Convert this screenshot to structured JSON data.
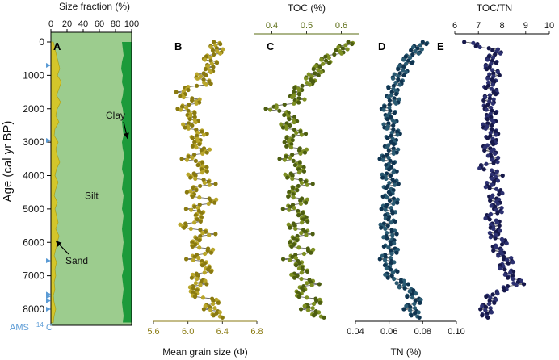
{
  "chart_data": {
    "type": "line",
    "title": "",
    "y_axis": {
      "label": "Age (cal yr BP)",
      "ticks": [
        0,
        1000,
        2000,
        3000,
        4000,
        5000,
        6000,
        7000,
        8000
      ],
      "tick_labels": [
        "0",
        "1000",
        "2000",
        "3000",
        "4000",
        "5000",
        "6000",
        "7000",
        "8000"
      ],
      "range": [
        -400,
        8500
      ]
    },
    "ams_label": {
      "prefix": "AMS",
      "isotope": "14",
      "element": "C"
    },
    "ams_dates": [
      700,
      2950,
      6550,
      7550,
      7620,
      7750,
      8000
    ],
    "panels": [
      {
        "id": "A",
        "panel_label": "A",
        "xlabel": "Size fraction (%)",
        "xlabel_position": "top",
        "xlim": [
          0,
          100
        ],
        "ticks": [
          0,
          20,
          40,
          60,
          80,
          100
        ],
        "tick_labels": [
          "0",
          "20",
          "40",
          "60",
          "80",
          "100"
        ],
        "components": [
          {
            "name": "Sand",
            "color": "#d4c62a"
          },
          {
            "name": "Silt",
            "color": "#9ccc8e"
          },
          {
            "name": "Clay",
            "color": "#1c9a3a"
          }
        ],
        "ages": [
          0,
          200,
          400,
          600,
          800,
          1000,
          1200,
          1400,
          1600,
          1800,
          2000,
          2200,
          2400,
          2600,
          2800,
          3000,
          3200,
          3400,
          3600,
          3800,
          4000,
          4200,
          4400,
          4600,
          4800,
          5000,
          5200,
          5400,
          5600,
          5800,
          6000,
          6200,
          6400,
          6600,
          6800,
          7000,
          7200,
          7400,
          7600,
          7800,
          8000,
          8200,
          8400
        ],
        "sand_upper": [
          3,
          5,
          7,
          9,
          11,
          8,
          13,
          10,
          7,
          12,
          8,
          6,
          10,
          5,
          4,
          9,
          6,
          8,
          11,
          7,
          5,
          9,
          6,
          4,
          8,
          5,
          7,
          9,
          6,
          10,
          8,
          6,
          4,
          7,
          5,
          6,
          4,
          5,
          3,
          4,
          6,
          4,
          3
        ],
        "silt_upper": [
          88,
          89,
          90,
          88,
          87,
          89,
          88,
          90,
          89,
          87,
          89,
          90,
          88,
          89,
          90,
          88,
          89,
          91,
          89,
          88,
          90,
          89,
          88,
          90,
          89,
          88,
          90,
          89,
          88,
          89,
          90,
          89,
          88,
          89,
          90,
          88,
          89,
          90,
          89,
          88,
          89,
          90,
          89
        ],
        "annotations": [
          {
            "text": "Clay",
            "age": 2200,
            "value": 76,
            "arrow_to_age": 2900,
            "arrow_to_value": 95
          },
          {
            "text": "Silt",
            "age": 4600,
            "value": 52
          },
          {
            "text": "Sand",
            "age": 6550,
            "value": 28,
            "arrow_to_age": 5950,
            "arrow_to_value": 4
          }
        ]
      },
      {
        "id": "B",
        "panel_label": "B",
        "xlabel": "Mean grain size (Φ)",
        "xlabel_position": "bottom",
        "xlim": [
          5.6,
          6.8
        ],
        "ticks": [
          5.6,
          6.0,
          6.4,
          6.8
        ],
        "tick_labels": [
          "5.6",
          "6.0",
          "6.4",
          "6.8"
        ],
        "colors": [
          "#8a7a10",
          "#b9a62a"
        ],
        "ages": [
          0,
          250,
          500,
          750,
          1000,
          1250,
          1500,
          1750,
          2000,
          2250,
          2500,
          2750,
          3000,
          3250,
          3500,
          3750,
          4000,
          4250,
          4500,
          4750,
          5000,
          5250,
          5500,
          5750,
          6000,
          6250,
          6500,
          6750,
          7000,
          7250,
          7500,
          7750,
          8000,
          8250
        ],
        "values": [
          6.3,
          6.35,
          6.25,
          6.3,
          6.15,
          6.2,
          5.85,
          6.1,
          5.95,
          6.1,
          6.0,
          6.15,
          6.05,
          6.2,
          6.0,
          6.25,
          6.05,
          6.25,
          5.95,
          6.3,
          6.05,
          6.2,
          5.95,
          6.25,
          6.0,
          6.25,
          6.05,
          6.3,
          6.1,
          6.15,
          6.0,
          6.3,
          6.25,
          6.4
        ]
      },
      {
        "id": "C",
        "panel_label": "C",
        "xlabel": "TOC (%)",
        "xlabel_position": "top",
        "xlim": [
          0.35,
          0.65
        ],
        "ticks": [
          0.4,
          0.5,
          0.6
        ],
        "tick_labels": [
          "0.4",
          "0.5",
          "0.6"
        ],
        "colors": [
          "#4d5e10",
          "#7d8f22"
        ],
        "ages": [
          0,
          250,
          500,
          750,
          1000,
          1250,
          1500,
          1750,
          2000,
          2250,
          2500,
          2750,
          3000,
          3250,
          3500,
          3750,
          4000,
          4250,
          4500,
          4750,
          5000,
          5250,
          5500,
          5750,
          6000,
          6250,
          6500,
          6750,
          7000,
          7250,
          7500,
          7750,
          8000,
          8250
        ],
        "values": [
          0.62,
          0.6,
          0.56,
          0.54,
          0.52,
          0.5,
          0.46,
          0.48,
          0.4,
          0.47,
          0.44,
          0.48,
          0.43,
          0.49,
          0.44,
          0.5,
          0.45,
          0.5,
          0.44,
          0.49,
          0.45,
          0.51,
          0.46,
          0.5,
          0.44,
          0.51,
          0.45,
          0.5,
          0.47,
          0.52,
          0.46,
          0.53,
          0.5,
          0.55
        ]
      },
      {
        "id": "D",
        "panel_label": "D",
        "xlabel": "TN (%)",
        "xlabel_position": "bottom",
        "xlim": [
          0.04,
          0.1
        ],
        "ticks": [
          0.04,
          0.06,
          0.08,
          0.1
        ],
        "tick_labels": [
          "0.04",
          "0.06",
          "0.08",
          "0.10"
        ],
        "colors": [
          "#0f3450",
          "#2a5a72"
        ],
        "ages": [
          0,
          250,
          500,
          750,
          1000,
          1250,
          1500,
          1750,
          2000,
          2250,
          2500,
          2750,
          3000,
          3250,
          3500,
          3750,
          4000,
          4250,
          4500,
          4750,
          5000,
          5250,
          5500,
          5750,
          6000,
          6250,
          6500,
          6750,
          7000,
          7250,
          7500,
          7750,
          8000,
          8250
        ],
        "values": [
          0.08,
          0.076,
          0.072,
          0.069,
          0.066,
          0.064,
          0.061,
          0.063,
          0.059,
          0.062,
          0.06,
          0.063,
          0.06,
          0.062,
          0.058,
          0.063,
          0.059,
          0.062,
          0.058,
          0.062,
          0.059,
          0.062,
          0.058,
          0.061,
          0.059,
          0.062,
          0.058,
          0.062,
          0.061,
          0.068,
          0.072,
          0.076,
          0.072,
          0.078
        ]
      },
      {
        "id": "E",
        "panel_label": "E",
        "xlabel": "TOC/TN",
        "xlabel_position": "top",
        "xlim": [
          6,
          10
        ],
        "ticks": [
          6,
          7,
          8,
          9,
          10
        ],
        "tick_labels": [
          "6",
          "7",
          "8",
          "9",
          "10"
        ],
        "colors": [
          "#16184a",
          "#2c3070"
        ],
        "ages": [
          0,
          250,
          500,
          750,
          1000,
          1250,
          1500,
          1750,
          2000,
          2250,
          2500,
          2750,
          3000,
          3250,
          3500,
          3750,
          4000,
          4250,
          4500,
          4750,
          5000,
          5250,
          5500,
          5750,
          6000,
          6250,
          6500,
          6750,
          7000,
          7250,
          7500,
          7750,
          8000,
          8250
        ],
        "values": [
          6.4,
          7.8,
          7.6,
          7.5,
          7.7,
          7.4,
          7.6,
          7.4,
          7.5,
          7.6,
          7.4,
          7.6,
          7.5,
          7.4,
          7.8,
          7.2,
          7.9,
          7.4,
          7.8,
          7.6,
          7.9,
          7.5,
          7.8,
          7.6,
          8.0,
          7.7,
          8.3,
          8.1,
          8.4,
          8.7,
          7.6,
          7.5,
          7.3,
          7.4
        ]
      }
    ]
  }
}
